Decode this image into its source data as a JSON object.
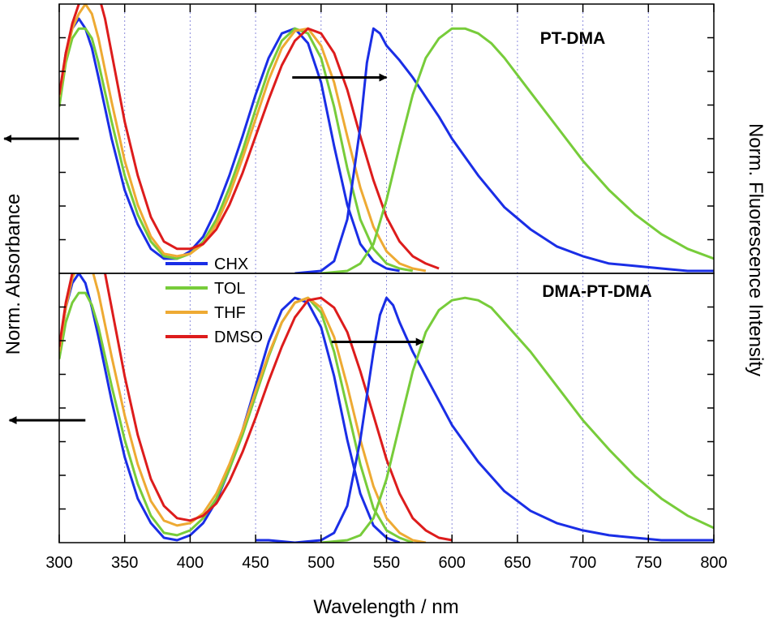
{
  "chart_data": {
    "type": "line",
    "xlabel": "Wavelength / nm",
    "ylabel_left": "Norm. Absorbance",
    "ylabel_right": "Norm. Fluorescence Intensity",
    "xlim": [
      300,
      800
    ],
    "x_ticks": [
      300,
      350,
      400,
      450,
      500,
      550,
      600,
      650,
      700,
      750,
      800
    ],
    "grid": "vertical dotted at every 50 nm",
    "legend": {
      "placement": "center-left",
      "entries": [
        {
          "name": "CHX",
          "color": "#1a2ee6"
        },
        {
          "name": "TOL",
          "color": "#77cc3a"
        },
        {
          "name": "THF",
          "color": "#eeaa33"
        },
        {
          "name": "DMSO",
          "color": "#dd1c1c"
        }
      ]
    },
    "panels": [
      {
        "title": "PT-DMA",
        "ylim": [
          0,
          1.1
        ],
        "absorbance": [
          {
            "name": "CHX",
            "x": [
              300,
              305,
              310,
              315,
              320,
              325,
              330,
              340,
              350,
              360,
              370,
              380,
              390,
              400,
              410,
              420,
              430,
              440,
              450,
              460,
              470,
              480,
              490,
              500,
              510,
              520,
              530,
              540,
              550,
              560
            ],
            "y": [
              0.7,
              0.9,
              1.0,
              1.04,
              1.0,
              0.92,
              0.8,
              0.55,
              0.34,
              0.2,
              0.1,
              0.06,
              0.06,
              0.09,
              0.15,
              0.26,
              0.4,
              0.56,
              0.73,
              0.88,
              0.98,
              1.0,
              0.94,
              0.78,
              0.52,
              0.28,
              0.12,
              0.05,
              0.02,
              0.01
            ]
          },
          {
            "name": "TOL",
            "x": [
              300,
              305,
              310,
              315,
              320,
              325,
              330,
              340,
              350,
              360,
              370,
              380,
              390,
              400,
              410,
              420,
              430,
              440,
              450,
              460,
              470,
              480,
              490,
              500,
              510,
              520,
              530,
              540,
              550,
              560,
              570
            ],
            "y": [
              0.68,
              0.86,
              0.96,
              1.0,
              1.0,
              0.96,
              0.86,
              0.62,
              0.4,
              0.24,
              0.13,
              0.07,
              0.06,
              0.08,
              0.13,
              0.22,
              0.35,
              0.5,
              0.67,
              0.83,
              0.95,
              1.0,
              0.98,
              0.88,
              0.68,
              0.43,
              0.22,
              0.1,
              0.04,
              0.02,
              0.01
            ]
          },
          {
            "name": "THF",
            "x": [
              300,
              305,
              310,
              315,
              320,
              325,
              330,
              340,
              350,
              360,
              370,
              380,
              390,
              400,
              410,
              420,
              430,
              440,
              450,
              460,
              470,
              480,
              490,
              500,
              510,
              520,
              530,
              540,
              550,
              560,
              570,
              580
            ],
            "y": [
              0.72,
              0.88,
              1.0,
              1.06,
              1.1,
              1.06,
              0.96,
              0.7,
              0.46,
              0.28,
              0.15,
              0.08,
              0.07,
              0.08,
              0.12,
              0.2,
              0.32,
              0.47,
              0.63,
              0.79,
              0.92,
              0.99,
              1.0,
              0.93,
              0.78,
              0.56,
              0.35,
              0.19,
              0.09,
              0.04,
              0.02,
              0.01
            ]
          },
          {
            "name": "DMSO",
            "x": [
              300,
              305,
              310,
              315,
              320,
              325,
              330,
              335,
              340,
              350,
              360,
              370,
              380,
              390,
              400,
              410,
              420,
              430,
              440,
              450,
              460,
              470,
              480,
              490,
              500,
              510,
              520,
              530,
              540,
              550,
              560,
              570,
              580,
              590
            ],
            "y": [
              0.73,
              0.9,
              1.02,
              1.1,
              1.15,
              1.18,
              1.14,
              1.04,
              0.9,
              0.62,
              0.4,
              0.23,
              0.13,
              0.1,
              0.1,
              0.12,
              0.18,
              0.28,
              0.41,
              0.56,
              0.71,
              0.85,
              0.95,
              1.0,
              0.98,
              0.9,
              0.75,
              0.56,
              0.38,
              0.23,
              0.13,
              0.07,
              0.04,
              0.02
            ]
          }
        ],
        "fluorescence": [
          {
            "name": "CHX",
            "x": [
              480,
              500,
              510,
              520,
              530,
              535,
              540,
              545,
              550,
              560,
              570,
              580,
              590,
              600,
              620,
              640,
              660,
              680,
              700,
              720,
              740,
              760,
              780,
              800
            ],
            "y": [
              0.0,
              0.01,
              0.05,
              0.22,
              0.6,
              0.86,
              1.0,
              0.98,
              0.93,
              0.87,
              0.8,
              0.72,
              0.64,
              0.55,
              0.4,
              0.27,
              0.18,
              0.11,
              0.07,
              0.04,
              0.03,
              0.02,
              0.01,
              0.01
            ]
          },
          {
            "name": "TOL",
            "x": [
              500,
              520,
              530,
              540,
              550,
              560,
              570,
              580,
              590,
              600,
              610,
              620,
              630,
              640,
              660,
              680,
              700,
              720,
              740,
              760,
              780,
              800
            ],
            "y": [
              0.0,
              0.01,
              0.04,
              0.12,
              0.3,
              0.52,
              0.73,
              0.88,
              0.96,
              1.0,
              1.0,
              0.98,
              0.94,
              0.88,
              0.74,
              0.6,
              0.46,
              0.34,
              0.24,
              0.16,
              0.1,
              0.06
            ]
          }
        ]
      },
      {
        "title": "DMA-PT-DMA",
        "ylim": [
          0,
          1.1
        ],
        "absorbance": [
          {
            "name": "CHX",
            "x": [
              300,
              305,
              310,
              315,
              320,
              325,
              330,
              340,
              350,
              360,
              370,
              380,
              390,
              400,
              410,
              420,
              430,
              440,
              450,
              460,
              470,
              480,
              490,
              500,
              510,
              520,
              530,
              540,
              550,
              560
            ],
            "y": [
              0.78,
              0.96,
              1.06,
              1.1,
              1.06,
              0.96,
              0.84,
              0.58,
              0.35,
              0.18,
              0.08,
              0.02,
              0.01,
              0.03,
              0.08,
              0.17,
              0.3,
              0.46,
              0.64,
              0.82,
              0.95,
              1.0,
              0.98,
              0.88,
              0.68,
              0.42,
              0.2,
              0.07,
              0.02,
              0.0
            ]
          },
          {
            "name": "TOL",
            "x": [
              300,
              305,
              310,
              315,
              320,
              325,
              330,
              340,
              350,
              360,
              370,
              380,
              390,
              400,
              410,
              420,
              430,
              440,
              450,
              460,
              470,
              480,
              490,
              500,
              510,
              520,
              530,
              540,
              550,
              560,
              570
            ],
            "y": [
              0.75,
              0.9,
              0.98,
              1.02,
              1.02,
              0.97,
              0.88,
              0.64,
              0.42,
              0.24,
              0.11,
              0.04,
              0.03,
              0.05,
              0.1,
              0.18,
              0.3,
              0.44,
              0.6,
              0.76,
              0.9,
              0.98,
              1.0,
              0.94,
              0.78,
              0.55,
              0.32,
              0.14,
              0.05,
              0.02,
              0.0
            ]
          },
          {
            "name": "THF",
            "x": [
              300,
              305,
              310,
              315,
              320,
              325,
              330,
              340,
              350,
              360,
              370,
              380,
              390,
              400,
              410,
              420,
              430,
              440,
              450,
              460,
              470,
              480,
              490,
              500,
              510,
              520,
              530,
              540,
              550,
              560,
              570,
              580
            ],
            "y": [
              0.78,
              0.96,
              1.08,
              1.14,
              1.16,
              1.12,
              1.02,
              0.76,
              0.52,
              0.32,
              0.17,
              0.09,
              0.07,
              0.08,
              0.12,
              0.2,
              0.32,
              0.46,
              0.62,
              0.77,
              0.9,
              0.98,
              1.0,
              0.96,
              0.84,
              0.64,
              0.42,
              0.23,
              0.1,
              0.04,
              0.01,
              0.0
            ]
          },
          {
            "name": "DMSO",
            "x": [
              300,
              305,
              310,
              315,
              320,
              325,
              330,
              335,
              340,
              350,
              360,
              370,
              380,
              390,
              400,
              410,
              420,
              430,
              440,
              450,
              460,
              470,
              480,
              490,
              500,
              510,
              520,
              530,
              540,
              550,
              560,
              570,
              580,
              590,
              600
            ],
            "y": [
              0.8,
              0.98,
              1.1,
              1.18,
              1.22,
              1.24,
              1.2,
              1.1,
              0.96,
              0.68,
              0.44,
              0.26,
              0.15,
              0.1,
              0.09,
              0.11,
              0.16,
              0.25,
              0.37,
              0.51,
              0.66,
              0.8,
              0.92,
              0.99,
              1.0,
              0.96,
              0.86,
              0.7,
              0.52,
              0.34,
              0.2,
              0.1,
              0.05,
              0.02,
              0.01
            ]
          }
        ],
        "fluorescence": [
          {
            "name": "CHX",
            "x": [
              450,
              460,
              480,
              500,
              510,
              520,
              530,
              540,
              545,
              550,
              555,
              560,
              570,
              580,
              590,
              600,
              620,
              640,
              660,
              680,
              700,
              720,
              740,
              760,
              780,
              800
            ],
            "y": [
              0.01,
              0.01,
              0.0,
              0.01,
              0.04,
              0.15,
              0.42,
              0.78,
              0.93,
              1.0,
              0.97,
              0.9,
              0.78,
              0.68,
              0.58,
              0.48,
              0.33,
              0.21,
              0.13,
              0.08,
              0.05,
              0.03,
              0.02,
              0.01,
              0.01,
              0.01
            ]
          },
          {
            "name": "TOL",
            "x": [
              500,
              520,
              530,
              540,
              550,
              560,
              570,
              580,
              590,
              600,
              610,
              620,
              630,
              640,
              660,
              680,
              700,
              720,
              740,
              760,
              780,
              800
            ],
            "y": [
              0.0,
              0.01,
              0.03,
              0.1,
              0.26,
              0.48,
              0.7,
              0.86,
              0.95,
              0.99,
              1.0,
              0.99,
              0.96,
              0.9,
              0.78,
              0.64,
              0.5,
              0.38,
              0.27,
              0.18,
              0.11,
              0.06
            ]
          }
        ]
      }
    ],
    "annotations": [
      {
        "panel": 0,
        "text": "left arrow",
        "points_to": "absorbance axis",
        "from_x": 315,
        "to_x": 258,
        "y": 0.55
      },
      {
        "panel": 0,
        "text": "right arrow",
        "points_to": "fluorescence axis",
        "from_x": 478,
        "to_x": 550,
        "y": 0.8
      },
      {
        "panel": 1,
        "text": "left arrow",
        "points_to": "absorbance axis",
        "from_x": 320,
        "to_x": 262,
        "y": 0.5
      },
      {
        "panel": 1,
        "text": "right arrow",
        "points_to": "fluorescence axis",
        "from_x": 508,
        "to_x": 578,
        "y": 0.82
      }
    ]
  }
}
